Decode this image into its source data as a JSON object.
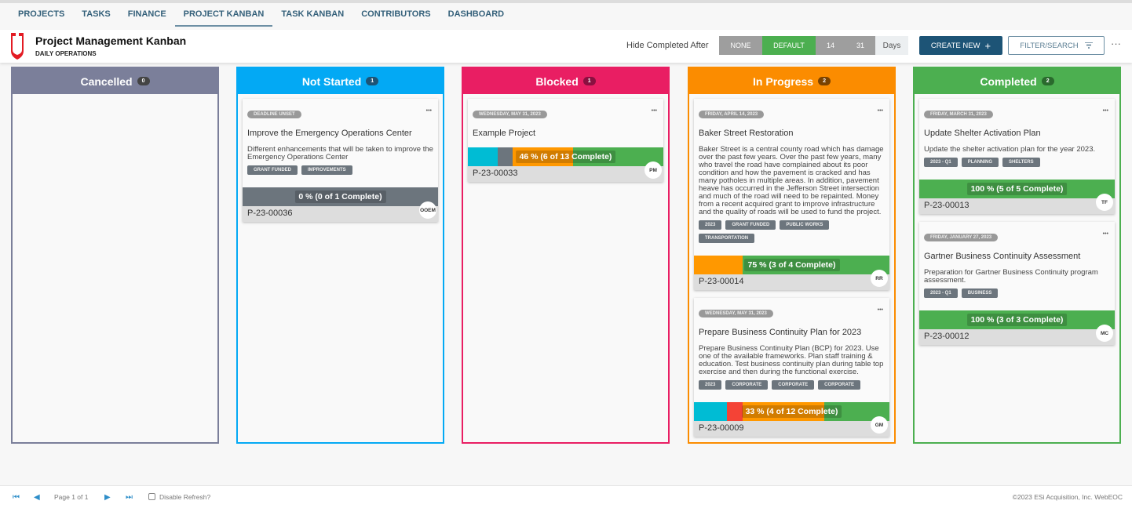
{
  "nav": {
    "tabs": [
      "PROJECTS",
      "TASKS",
      "FINANCE",
      "PROJECT KANBAN",
      "TASK KANBAN",
      "CONTRIBUTORS",
      "DASHBOARD"
    ],
    "active": 3
  },
  "header": {
    "title": "Project Management Kanban",
    "subtitle": "DAILY OPERATIONS",
    "hide_label": "Hide Completed After",
    "options": [
      "NONE",
      "DEFAULT",
      "14",
      "31"
    ],
    "selected": "DEFAULT",
    "days": "Days",
    "create": "CREATE NEW",
    "create_icon": "+",
    "filter": "FILTER/SEARCH",
    "more": "···"
  },
  "colors": {
    "cancelled": "#7b7f9a",
    "not_started": "#03a9f4",
    "blocked": "#e91e63",
    "in_progress": "#fb8c00",
    "completed": "#4caf50",
    "seg_cyan": "#00bcd4",
    "seg_gray": "#6c757d",
    "seg_red": "#f44336",
    "seg_orange": "#ff9800",
    "seg_green": "#4caf50"
  },
  "columns": [
    {
      "name": "Cancelled",
      "count": "0",
      "color": "#7b7f9a",
      "badge": "#444",
      "cards": []
    },
    {
      "name": "Not Started",
      "count": "1",
      "color": "#03a9f4",
      "badge": "#1d5476",
      "cards": [
        {
          "date": "DEADLINE UNSET",
          "title": "Improve the Emergency Operations Center",
          "desc": "Different enhancements that will be taken to improve the Emergency Operations Center",
          "tags": [
            "GRANT FUNDED",
            "IMPROVEMENTS"
          ],
          "progress": "0 % (0 of 1 Complete)",
          "segments": [
            {
              "color": "#6c757d",
              "count": 1
            }
          ],
          "id": "P-23-00036",
          "avatar": "OOEM"
        }
      ]
    },
    {
      "name": "Blocked",
      "count": "1",
      "color": "#e91e63",
      "badge": "#8a1040",
      "cards": [
        {
          "date": "WEDNESDAY, MAY 31, 2023",
          "title": "Example Project",
          "desc": "",
          "tags": [],
          "progress": "46 % (6 of 13 Complete)",
          "segments": [
            {
              "color": "#00bcd4",
              "count": 2
            },
            {
              "color": "#6c757d",
              "count": 1
            },
            {
              "color": "#ff9800",
              "count": 4
            },
            {
              "color": "#4caf50",
              "count": 6
            }
          ],
          "id": "P-23-00033",
          "avatar": "PM"
        }
      ]
    },
    {
      "name": "In Progress",
      "count": "2",
      "color": "#fb8c00",
      "badge": "#7a4200",
      "cards": [
        {
          "date": "FRIDAY, APRIL 14, 2023",
          "title": "Baker Street Restoration",
          "desc": "Baker Street is a central county road which has damage over the past few years. Over the past few years, many who travel the road have complained about its poor condition and how the pavement is cracked and has many potholes in multiple areas. In addition, pavement heave has occurred in the Jefferson Street intersection and much of the road will need to be repainted. Money from a recent acquired grant to improve infrastructure and the quality of roads will be used to fund the project.",
          "tags": [
            "2023",
            "GRANT FUNDED",
            "PUBLIC WORKS",
            "TRANSPORTATION"
          ],
          "progress": "75 % (3 of 4 Complete)",
          "segments": [
            {
              "color": "#ff9800",
              "count": 1
            },
            {
              "color": "#4caf50",
              "count": 3
            }
          ],
          "id": "P-23-00014",
          "avatar": "RR"
        },
        {
          "date": "WEDNESDAY, MAY 31, 2023",
          "title": "Prepare Business Continuity Plan for 2023",
          "desc": "Prepare Business Continuity Plan (BCP) for 2023. Use one of the available frameworks. Plan staff training & education. Test business continuity plan during table top exercise and then during the functional exercise.",
          "tags": [
            "2023",
            "CORPORATE",
            "CORPORATE",
            "CORPORATE"
          ],
          "progress": "33 % (4 of 12 Complete)",
          "segments": [
            {
              "color": "#00bcd4",
              "count": 2
            },
            {
              "color": "#f44336",
              "count": 1
            },
            {
              "color": "#ff9800",
              "count": 5
            },
            {
              "color": "#4caf50",
              "count": 4
            }
          ],
          "id": "P-23-00009",
          "avatar": "GM"
        }
      ]
    },
    {
      "name": "Completed",
      "count": "2",
      "color": "#4caf50",
      "badge": "#2a6a2d",
      "cards": [
        {
          "date": "FRIDAY, MARCH 31, 2023",
          "title": "Update Shelter Activation Plan",
          "desc": "Update the shelter activation plan for the year 2023.",
          "tags": [
            "2023 - Q1",
            "PLANNING",
            "SHELTERS"
          ],
          "progress": "100 % (5 of 5 Complete)",
          "segments": [
            {
              "color": "#4caf50",
              "count": 5
            }
          ],
          "id": "P-23-00013",
          "avatar": "TF"
        },
        {
          "date": "FRIDAY, JANUARY 27, 2023",
          "title": "Gartner Business Continuity Assessment",
          "desc": "Preparation for Gartner Business Continuity program assessment.",
          "tags": [
            "2023 - Q1",
            "BUSINESS"
          ],
          "progress": "100 % (3 of 3 Complete)",
          "segments": [
            {
              "color": "#4caf50",
              "count": 3
            }
          ],
          "id": "P-23-00012",
          "avatar": "MC"
        }
      ]
    }
  ],
  "footer": {
    "page": "Page 1 of 1",
    "disable_refresh": "Disable Refresh?",
    "copyright": "©2023 ESi Acquisition, Inc. WebEOC"
  }
}
